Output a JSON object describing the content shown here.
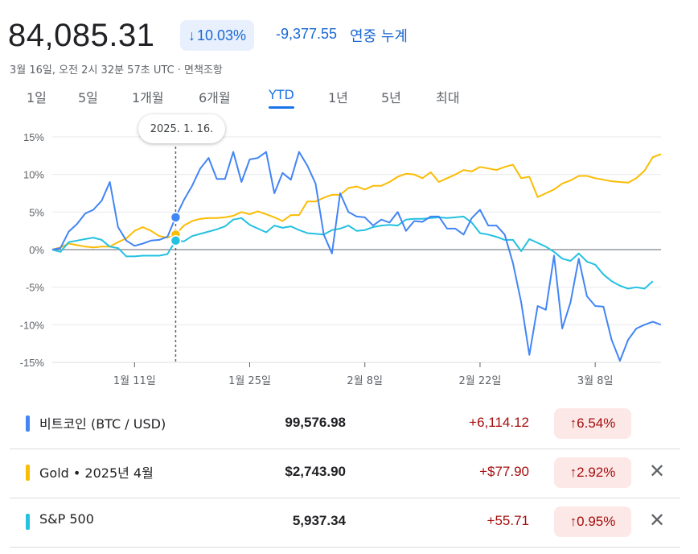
{
  "header": {
    "price": "84,085.31",
    "change_arrow": "↓",
    "change_pct": "10.03%",
    "change_abs": "-9,377.55",
    "change_label": "연중 누계",
    "timestamp": "3월 16일, 오전 2시 32분 57초 UTC · 면책조항"
  },
  "tabs": [
    {
      "label": "1일"
    },
    {
      "label": "5일"
    },
    {
      "label": "1개월"
    },
    {
      "label": "6개월"
    },
    {
      "label": "YTD",
      "active": true
    },
    {
      "label": "1년"
    },
    {
      "label": "5년"
    },
    {
      "label": "최대"
    }
  ],
  "tooltip": "2025. 1. 16.",
  "colors": {
    "btc": "#4285f4",
    "gold": "#fbbc04",
    "sp": "#24c1e0",
    "up": "#a50e0e",
    "accent": "#1a73e8"
  },
  "chart_data": {
    "type": "line",
    "ylim": [
      -15,
      15
    ],
    "y_ticks": [
      "15%",
      "10%",
      "5%",
      "0%",
      "-5%",
      "-10%",
      "-15%"
    ],
    "x_ticks": [
      "1월 11일",
      "1월 25일",
      "2월 8일",
      "2월 22일",
      "3월 8일"
    ],
    "x_tick_days": [
      10,
      24,
      38,
      52,
      66
    ],
    "marker_day": 15,
    "series": [
      {
        "name": "비트코인 (BTC / USD)",
        "color": "#4285f4",
        "x": [
          0,
          1,
          2,
          3,
          4,
          5,
          6,
          7,
          8,
          9,
          10,
          11,
          12,
          13,
          14,
          15,
          16,
          17,
          18,
          19,
          20,
          21,
          22,
          23,
          24,
          25,
          26,
          27,
          28,
          29,
          30,
          31,
          32,
          33,
          34,
          35,
          36,
          37,
          38,
          39,
          40,
          41,
          42,
          43,
          44,
          45,
          46,
          47,
          48,
          49,
          50,
          51,
          52,
          53,
          54,
          55,
          56,
          57,
          58,
          59,
          60,
          61,
          62,
          63,
          64,
          65,
          66,
          67,
          68,
          69,
          70,
          71,
          72,
          73,
          74
        ],
        "y": [
          0,
          0.2,
          2.4,
          3.4,
          4.8,
          5.3,
          6.5,
          9,
          3,
          1.2,
          0.5,
          0.8,
          1.2,
          1.3,
          1.7,
          4.3,
          6.6,
          8.5,
          10.8,
          12.2,
          9.4,
          9.4,
          13,
          9,
          12,
          12.2,
          13,
          7.5,
          10.2,
          9.3,
          13,
          11.2,
          8.8,
          2,
          -0.5,
          7.5,
          5,
          4.4,
          4.3,
          3.2,
          4,
          3.6,
          5,
          2.5,
          3.8,
          3.7,
          4.4,
          4.4,
          2.8,
          2.8,
          2,
          4.2,
          5.3,
          3.2,
          3.2,
          2,
          -1.8,
          -7,
          -14,
          -7.5,
          -8,
          -0.8,
          -10.5,
          -7,
          -1.2,
          -6.2,
          -7.5,
          -7.6,
          -12,
          -14.8,
          -12,
          -10.5,
          -10,
          -9.6,
          -10
        ]
      },
      {
        "name": "Gold • 2025년 4월",
        "color": "#fbbc04",
        "x": [
          0,
          1,
          2,
          3,
          4,
          5,
          6,
          7,
          8,
          9,
          10,
          11,
          12,
          13,
          14,
          15,
          16,
          17,
          18,
          19,
          20,
          21,
          22,
          23,
          24,
          25,
          26,
          27,
          28,
          29,
          30,
          31,
          32,
          33,
          34,
          35,
          36,
          37,
          38,
          39,
          40,
          41,
          42,
          43,
          44,
          45,
          46,
          47,
          48,
          49,
          50,
          51,
          52,
          53,
          54,
          55,
          56,
          57,
          58,
          59,
          60,
          61,
          62,
          63,
          64,
          65,
          66,
          67,
          68,
          69,
          70,
          71,
          72,
          73,
          74
        ],
        "y": [
          0,
          0.3,
          0.8,
          0.6,
          0.4,
          0.3,
          0.4,
          0.4,
          1,
          1.5,
          2.5,
          3,
          2.5,
          1.8,
          1.6,
          2,
          3.2,
          3.8,
          4.1,
          4.2,
          4.2,
          4.3,
          4.5,
          5,
          4.7,
          5.1,
          4.7,
          4.3,
          3.8,
          4.6,
          4.6,
          6.4,
          6.4,
          6.9,
          7.3,
          7.3,
          8.2,
          8.4,
          8,
          8.5,
          8.5,
          9,
          9.7,
          10.1,
          10,
          9.5,
          10.3,
          9,
          9.5,
          10,
          10.6,
          10.4,
          11,
          10.8,
          10.6,
          11,
          11.3,
          9.5,
          9.7,
          7,
          7.5,
          8,
          8.8,
          9.2,
          9.8,
          9.8,
          9.5,
          9.3,
          9.1,
          9,
          8.9,
          9.5,
          10.5,
          12.3,
          12.7
        ]
      },
      {
        "name": "S&P 500",
        "color": "#24c1e0",
        "x": [
          0,
          1,
          2,
          3,
          4,
          5,
          6,
          7,
          8,
          9,
          10,
          11,
          12,
          13,
          14,
          15,
          16,
          17,
          18,
          19,
          20,
          21,
          22,
          23,
          24,
          25,
          26,
          27,
          28,
          29,
          30,
          31,
          32,
          33,
          34,
          35,
          36,
          37,
          38,
          39,
          40,
          41,
          42,
          43,
          44,
          45,
          46,
          47,
          48,
          49,
          50,
          51,
          52,
          53,
          54,
          55,
          56,
          57,
          58,
          59,
          60,
          61,
          62,
          63,
          64,
          65,
          66,
          67,
          68,
          69,
          70,
          71,
          72,
          73
        ],
        "y": [
          0,
          -0.3,
          1,
          1.2,
          1.4,
          1.6,
          1.3,
          0.4,
          0.2,
          -0.9,
          -0.9,
          -0.8,
          -0.8,
          -0.8,
          -0.6,
          1.2,
          1.1,
          1.8,
          2.1,
          2.4,
          2.7,
          3.1,
          4,
          4.2,
          3.3,
          2.8,
          2.3,
          3.2,
          2.9,
          3.1,
          2.6,
          2.2,
          2.1,
          2,
          2.6,
          2.8,
          3.2,
          2.5,
          2.6,
          3,
          3.2,
          3.3,
          3.2,
          4,
          4.1,
          4.1,
          4.2,
          4.3,
          4.2,
          4.3,
          4.4,
          3.6,
          2.2,
          2,
          1.7,
          1.3,
          1.3,
          -0.2,
          1.4,
          0.9,
          0.4,
          -0.3,
          -1.2,
          -1.5,
          -0.5,
          -1.6,
          -2,
          -3.3,
          -4.2,
          -4.8,
          -5.2,
          -5,
          -5.2,
          -4.2
        ]
      }
    ]
  },
  "legend": [
    {
      "name": "비트코인 (BTC / USD)",
      "value": "99,576.98",
      "abs": "+6,114.12",
      "pct": "6.54%",
      "arrow": "↑",
      "close": ""
    },
    {
      "name": "Gold • 2025년 4월",
      "value": "$2,743.90",
      "abs": "+$77.90",
      "pct": "2.92%",
      "arrow": "↑",
      "close": "✕"
    },
    {
      "name": "S&P 500",
      "value": "5,937.34",
      "abs": "+55.71",
      "pct": "0.95%",
      "arrow": "↑",
      "close": "✕"
    }
  ]
}
